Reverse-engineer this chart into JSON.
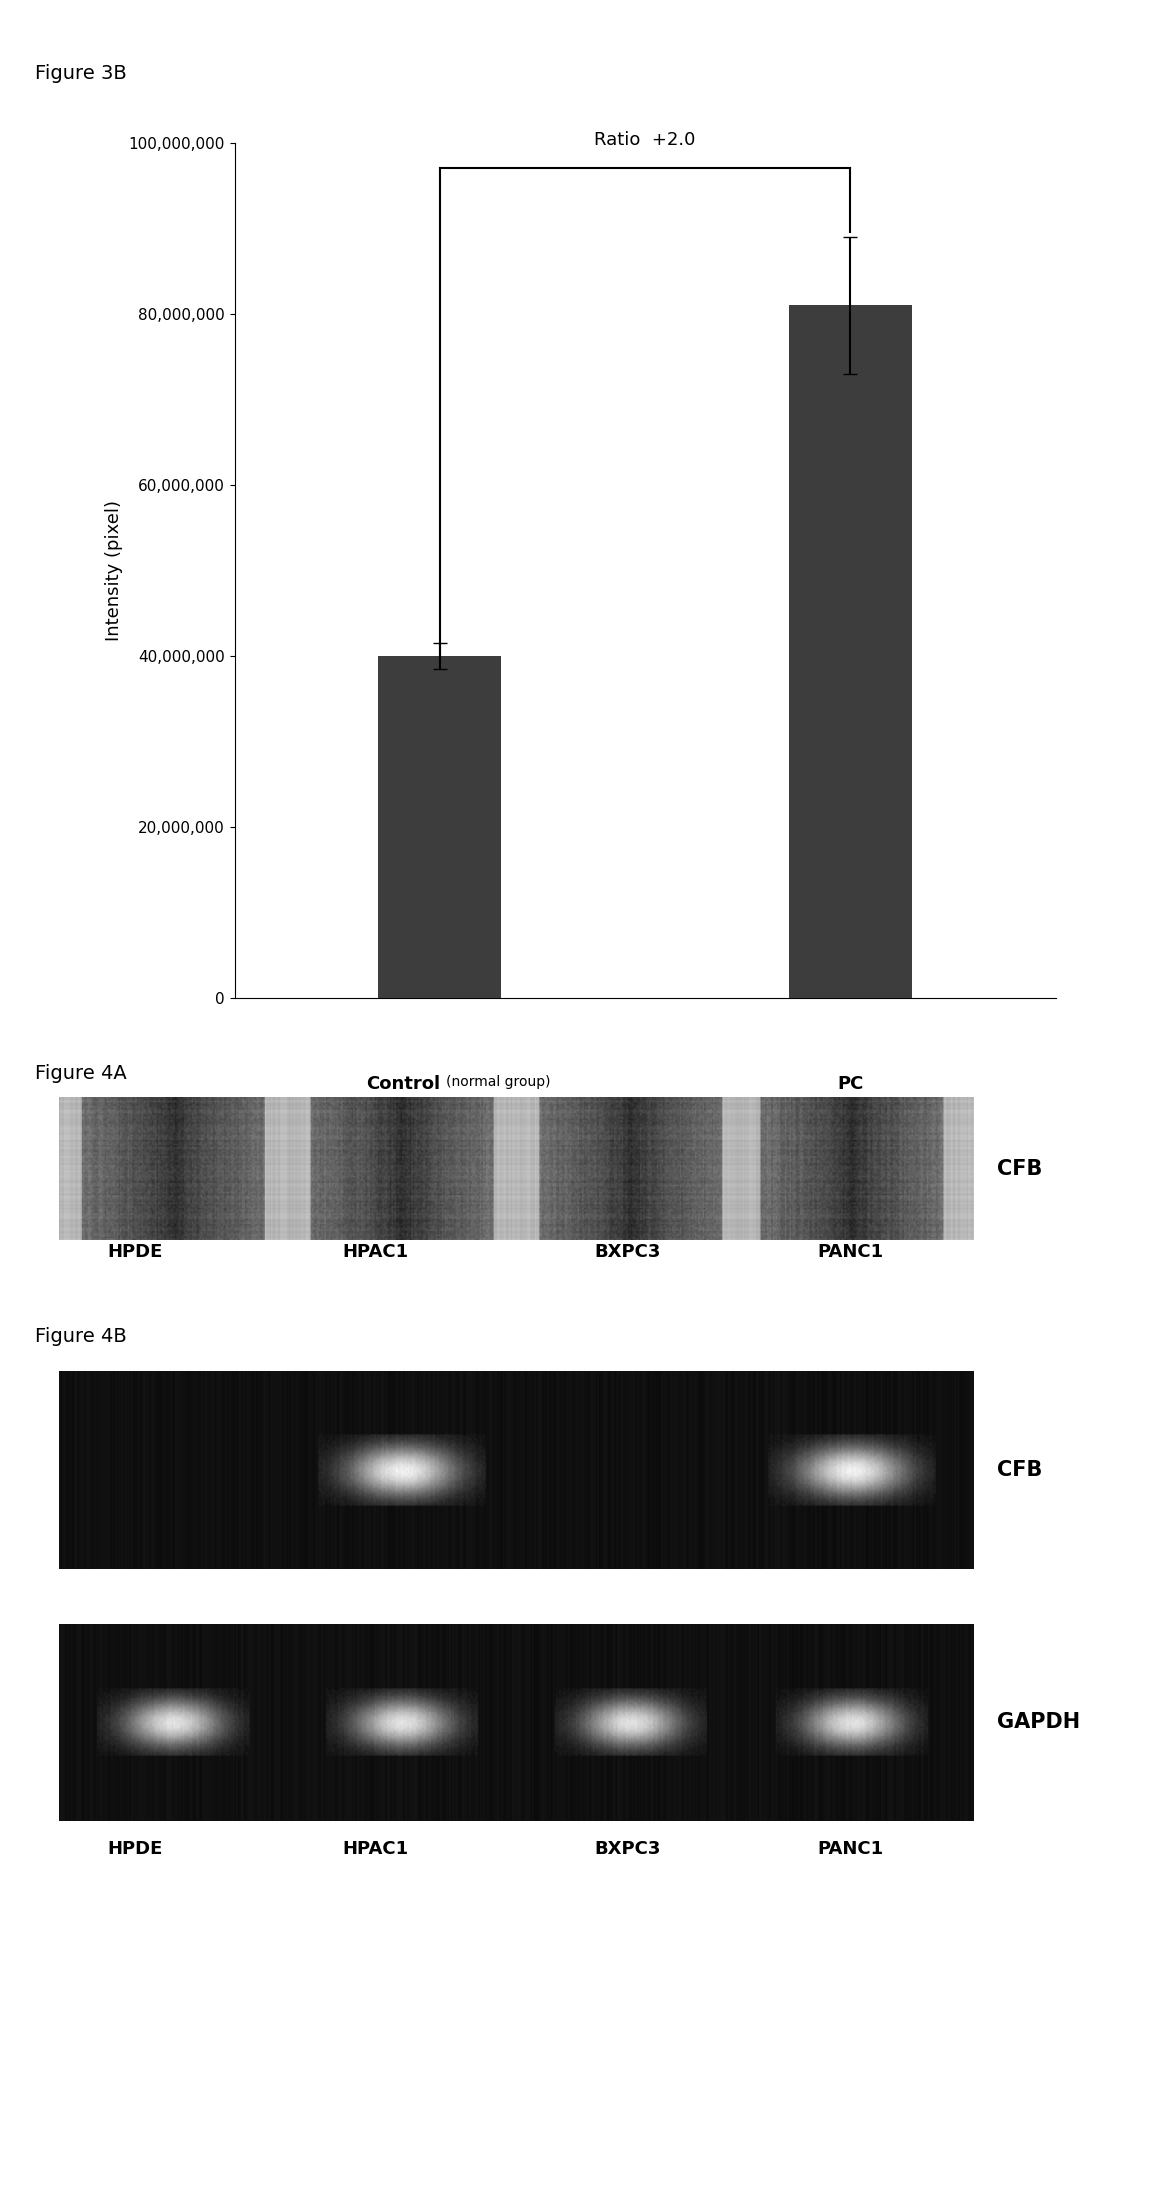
{
  "fig3b_title": "Figure 3B",
  "fig3b_bar_values": [
    40000000,
    81000000
  ],
  "fig3b_bar_errors": [
    1500000,
    8000000
  ],
  "fig3b_bar_color": "#3d3d3d",
  "fig3b_ylabel": "Intensity (pixel)",
  "fig3b_ylim": [
    0,
    100000000
  ],
  "fig3b_yticks": [
    0,
    20000000,
    40000000,
    60000000,
    80000000,
    100000000
  ],
  "fig3b_ytick_labels": [
    "0",
    "20,000,000",
    "40,000,000",
    "60,000,000",
    "80,000,000",
    "100,000,000"
  ],
  "fig3b_ratio_text": "Ratio  +2.0",
  "fig4a_title": "Figure 4A",
  "fig4a_labels": [
    "HPDE",
    "HPAC1",
    "BXPC3",
    "PANC1"
  ],
  "fig4a_cfb_label": "CFB",
  "fig4b_title": "Figure 4B",
  "fig4b_labels": [
    "HPDE",
    "HPAC1",
    "BXPC3",
    "PANC1"
  ],
  "fig4b_cfb_label": "CFB",
  "fig4b_gapdh_label": "GAPDH",
  "background_color": "#ffffff",
  "text_color": "#000000"
}
